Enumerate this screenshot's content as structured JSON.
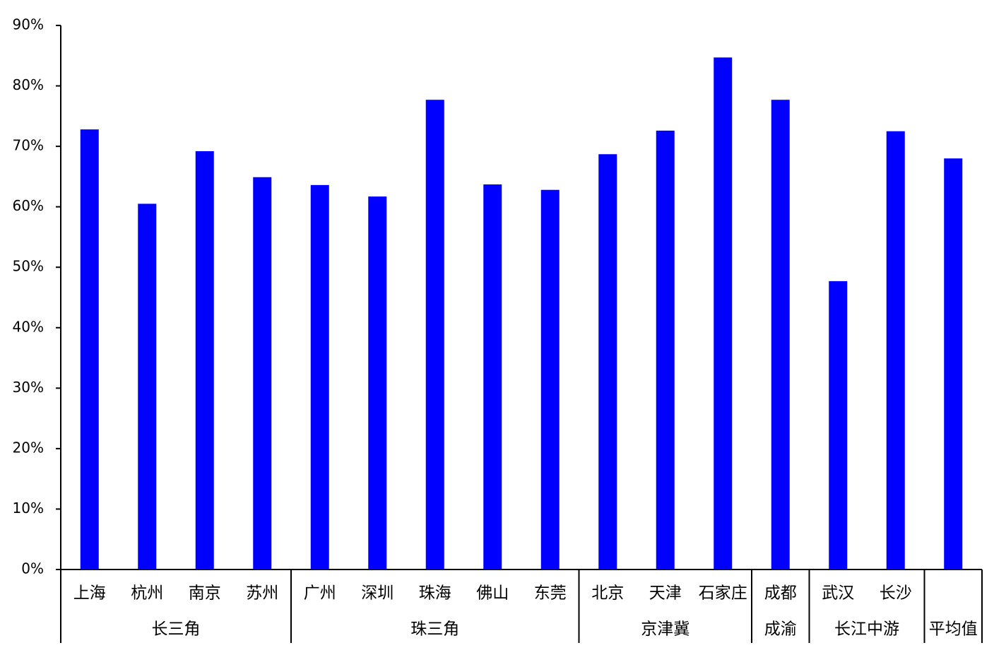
{
  "chart_data": {
    "type": "bar",
    "color": "#0000ff",
    "ylim": [
      0,
      90
    ],
    "yticks": [
      {
        "value": 0,
        "label": "0%"
      },
      {
        "value": 10,
        "label": "10%"
      },
      {
        "value": 20,
        "label": "20%"
      },
      {
        "value": 30,
        "label": "30%"
      },
      {
        "value": 40,
        "label": "40%"
      },
      {
        "value": 50,
        "label": "50%"
      },
      {
        "value": 60,
        "label": "60%"
      },
      {
        "value": 70,
        "label": "70%"
      },
      {
        "value": 80,
        "label": "80%"
      },
      {
        "value": 90,
        "label": "90%"
      }
    ],
    "groups": [
      {
        "name": "长三角",
        "categories": [
          "上海",
          "杭州",
          "南京",
          "苏州"
        ],
        "values": [
          72.8,
          60.5,
          69.2,
          64.9
        ]
      },
      {
        "name": "珠三角",
        "categories": [
          "广州",
          "深圳",
          "珠海",
          "佛山",
          "东莞"
        ],
        "values": [
          63.6,
          61.7,
          77.7,
          63.7,
          62.8
        ]
      },
      {
        "name": "京津冀",
        "categories": [
          "北京",
          "天津",
          "石家庄"
        ],
        "values": [
          68.7,
          72.6,
          84.7
        ]
      },
      {
        "name": "成渝",
        "categories": [
          "成都"
        ],
        "values": [
          77.7
        ]
      },
      {
        "name": "长江中游",
        "categories": [
          "武汉",
          "长沙"
        ],
        "values": [
          47.7,
          72.5
        ]
      },
      {
        "name": "平均值",
        "categories": [
          null
        ],
        "values": [
          68.0
        ]
      }
    ]
  }
}
